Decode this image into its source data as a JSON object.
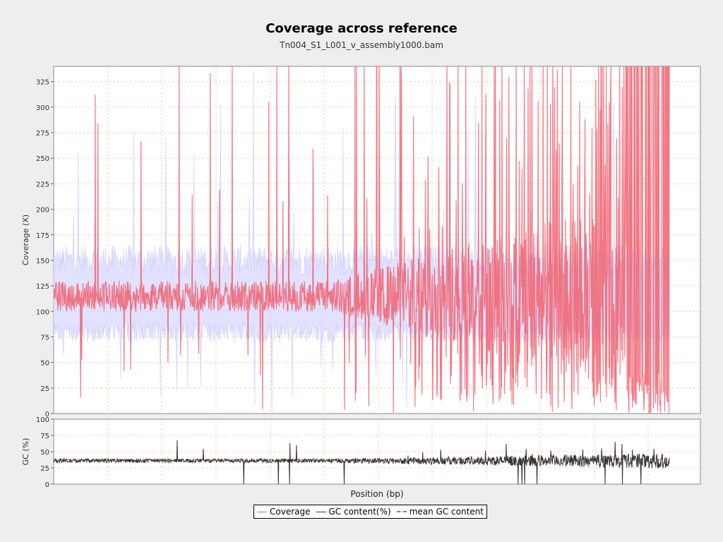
{
  "chart_data": [
    {
      "type": "line",
      "title": "Coverage across reference",
      "subtitle": "Tn004_S1_L001_v_assembly1000.bam",
      "xlabel": "Position (bp)",
      "ylabel": "Coverage (X)",
      "ylim": [
        0,
        340
      ],
      "yticks": [
        0,
        25,
        50,
        75,
        100,
        125,
        150,
        175,
        200,
        225,
        250,
        275,
        300,
        325
      ],
      "xticks_visible": false,
      "grid": true,
      "series": [
        {
          "name": "Coverage",
          "color": "#f0606f",
          "description_points": [
            [
              0.0,
              118
            ],
            [
              0.02,
              110
            ],
            [
              0.05,
              122
            ],
            [
              0.07,
              28
            ],
            [
              0.1,
              125
            ],
            [
              0.13,
              118
            ],
            [
              0.17,
              112
            ],
            [
              0.2,
              160
            ],
            [
              0.23,
              120
            ],
            [
              0.26,
              110
            ],
            [
              0.3,
              340
            ],
            [
              0.31,
              265
            ],
            [
              0.34,
              118
            ],
            [
              0.38,
              110
            ],
            [
              0.4,
              200
            ],
            [
              0.42,
              150
            ],
            [
              0.44,
              120
            ],
            [
              0.46,
              305
            ],
            [
              0.48,
              290
            ],
            [
              0.5,
              118
            ],
            [
              0.52,
              100
            ],
            [
              0.55,
              340
            ],
            [
              0.57,
              270
            ],
            [
              0.6,
              340
            ],
            [
              0.62,
              290
            ],
            [
              0.64,
              310
            ],
            [
              0.66,
              250
            ],
            [
              0.7,
              340
            ],
            [
              0.75,
              340
            ],
            [
              0.8,
              340
            ],
            [
              0.85,
              340
            ],
            [
              0.9,
              340
            ],
            [
              0.95,
              340
            ],
            [
              1.0,
              340
            ]
          ]
        },
        {
          "name": "GC content(%)",
          "color": "#333333",
          "mean_value": 36
        },
        {
          "name": "mean GC content",
          "color": "#e06060",
          "style": "dashed",
          "value": 38
        }
      ],
      "band": {
        "color": "#c8c8ff",
        "description": "coverage ± std band",
        "range_typical": [
          75,
          150
        ]
      }
    },
    {
      "type": "line",
      "ylabel": "GC (%)",
      "ylim": [
        0,
        100
      ],
      "yticks": [
        0,
        25,
        50,
        75,
        100
      ],
      "grid": true
    }
  ],
  "legend": {
    "items": [
      {
        "label": "Coverage",
        "color": "#f0606f",
        "style": "solid"
      },
      {
        "label": "GC content(%)",
        "color": "#333333",
        "style": "solid"
      },
      {
        "label": "mean GC content",
        "color": "#e06060",
        "style": "dashed"
      }
    ]
  }
}
